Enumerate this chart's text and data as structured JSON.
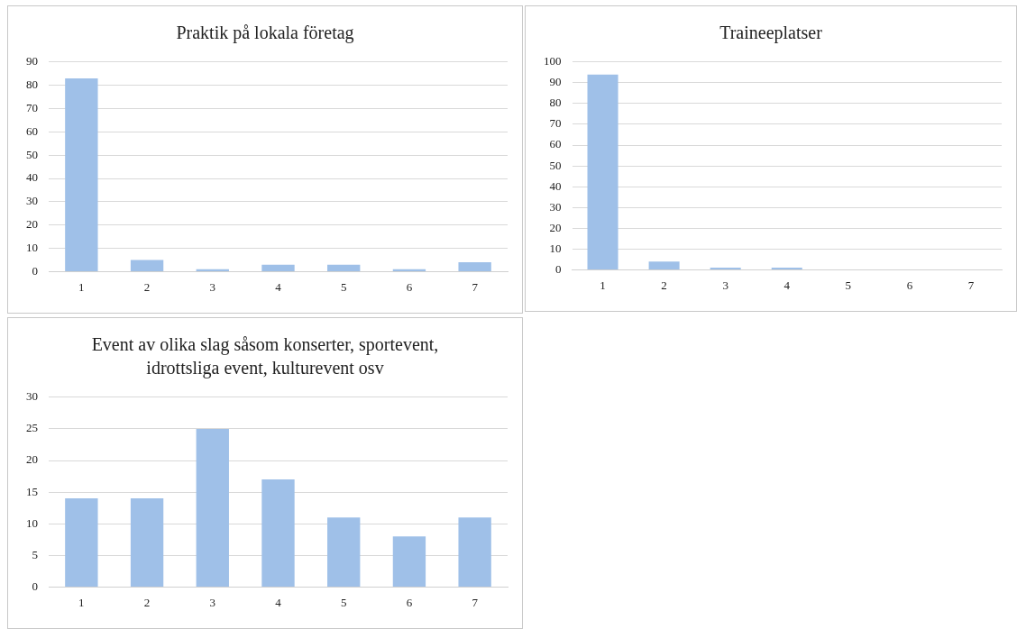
{
  "chart_data": [
    {
      "type": "bar",
      "title": "Praktik på lokala företag",
      "categories": [
        "1",
        "2",
        "3",
        "4",
        "5",
        "6",
        "7"
      ],
      "values": [
        83,
        5,
        1,
        3,
        3,
        1,
        4
      ],
      "color": "#9fc0e8",
      "ylim": [
        0,
        90
      ],
      "yticks": [
        0,
        10,
        20,
        30,
        40,
        50,
        60,
        70,
        80,
        90
      ],
      "grid": "y",
      "legend": false
    },
    {
      "type": "bar",
      "title": "Traineeplatser",
      "categories": [
        "1",
        "2",
        "3",
        "4",
        "5",
        "6",
        "7"
      ],
      "values": [
        94,
        4,
        1,
        1,
        0,
        0,
        0
      ],
      "color": "#9fc0e8",
      "ylim": [
        0,
        100
      ],
      "yticks": [
        0,
        10,
        20,
        30,
        40,
        50,
        60,
        70,
        80,
        90,
        100
      ],
      "grid": "y",
      "legend": false
    },
    {
      "type": "bar",
      "title": "Event av olika slag såsom konserter, sportevent, idrottsliga event, kulturevent osv",
      "categories": [
        "1",
        "2",
        "3",
        "4",
        "5",
        "6",
        "7"
      ],
      "values": [
        14,
        14,
        25,
        17,
        11,
        8,
        11
      ],
      "color": "#9fc0e8",
      "ylim": [
        0,
        30
      ],
      "yticks": [
        0,
        5,
        10,
        15,
        20,
        25,
        30
      ],
      "grid": "y",
      "legend": false
    }
  ]
}
